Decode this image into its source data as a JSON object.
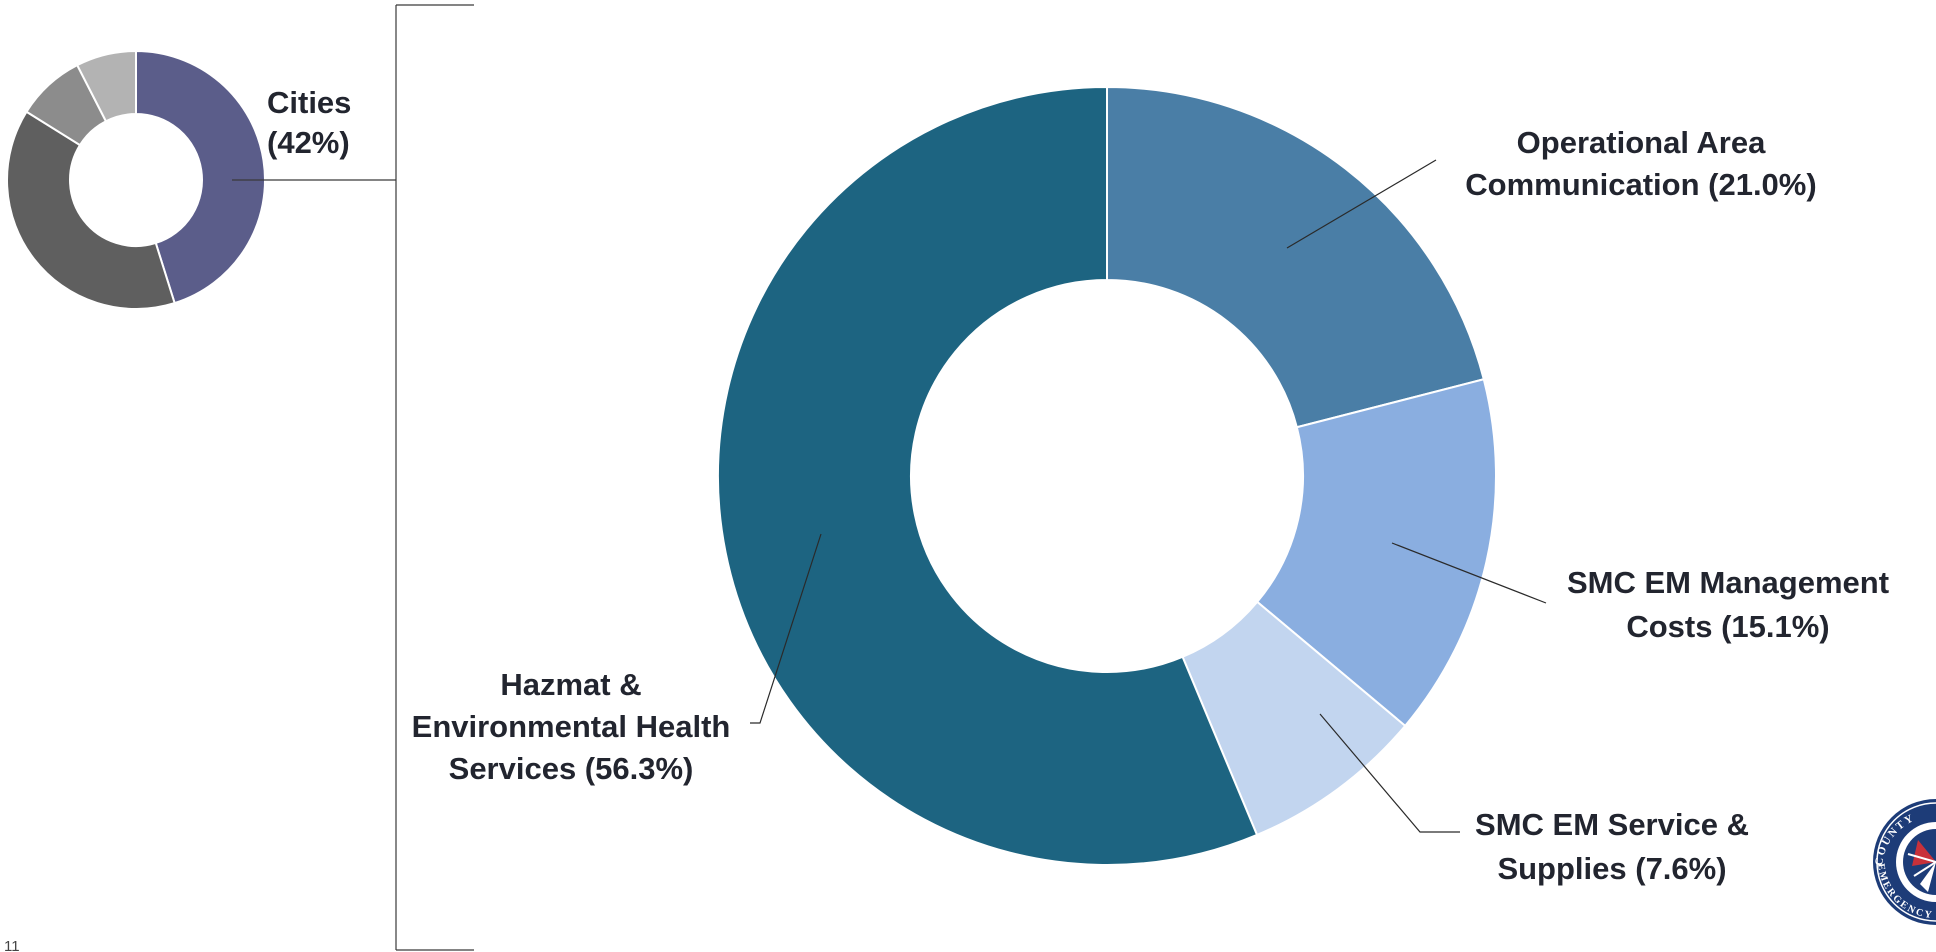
{
  "page": {
    "number": "11",
    "seal_text_top": "COUNTY",
    "seal_text_bottom": "EMERGENCY"
  },
  "chart_data": [
    {
      "type": "pie",
      "variant": "donut",
      "slices": [
        {
          "label": "Cities",
          "value": 42,
          "color": "#5b5d8a"
        },
        {
          "label": "",
          "value": 36,
          "color": "#5f5f5f"
        },
        {
          "label": "",
          "value": 8,
          "color": "#8c8c8c"
        },
        {
          "label": "",
          "value": 7,
          "color": "#b3b3b3"
        }
      ],
      "labels": [
        {
          "slice": 0,
          "lines": [
            "Cities",
            "(42%)"
          ]
        }
      ]
    },
    {
      "type": "pie",
      "variant": "donut",
      "slices": [
        {
          "label": "Operational Area Communication",
          "value": 21.0,
          "color": "#4a7ea6"
        },
        {
          "label": "SMC EM Management Costs",
          "value": 15.1,
          "color": "#8aaee0"
        },
        {
          "label": "SMC EM Service & Supplies",
          "value": 7.6,
          "color": "#c2d5ef"
        },
        {
          "label": "Hazmat & Environmental Health Services",
          "value": 56.3,
          "color": "#1d6481"
        }
      ],
      "labels": [
        {
          "slice": 0,
          "lines": [
            "Operational Area",
            "Communication (21.0%)"
          ]
        },
        {
          "slice": 1,
          "lines": [
            "SMC EM Management",
            "Costs (15.1%)"
          ]
        },
        {
          "slice": 2,
          "lines": [
            "SMC EM Service &",
            "Supplies (7.6%)"
          ]
        },
        {
          "slice": 3,
          "lines": [
            "Hazmat &",
            "Environmental Health",
            "Services (56.3%)"
          ]
        }
      ]
    }
  ]
}
